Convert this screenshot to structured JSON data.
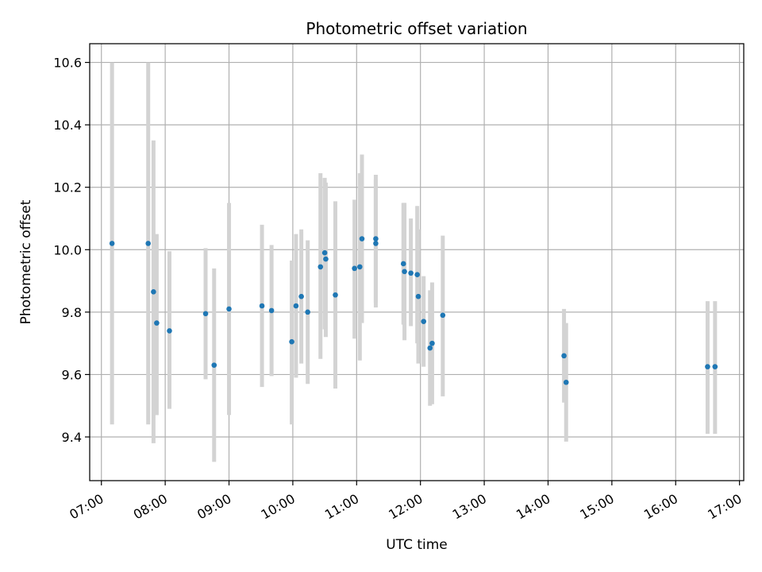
{
  "chart_data": {
    "type": "scatter",
    "title": "Photometric offset variation",
    "xlabel": "UTC time",
    "ylabel": "Photometric offset",
    "xlim": [
      "06:49",
      "17:04"
    ],
    "ylim": [
      9.26,
      10.66
    ],
    "x_ticks": [
      "07:00",
      "08:00",
      "09:00",
      "10:00",
      "11:00",
      "12:00",
      "13:00",
      "14:00",
      "15:00",
      "16:00",
      "17:00"
    ],
    "y_ticks": [
      "9.4",
      "9.6",
      "9.8",
      "10.0",
      "10.2",
      "10.4",
      "10.6"
    ],
    "grid": true,
    "point_color": "#1f77b4",
    "errorbar_color": "#d3d3d3",
    "points": [
      {
        "x": "07:10",
        "y": 10.02,
        "ylow": 9.44,
        "yhigh": 10.6
      },
      {
        "x": "07:44",
        "y": 10.02,
        "ylow": 9.44,
        "yhigh": 10.6
      },
      {
        "x": "07:49",
        "y": 9.865,
        "ylow": 9.38,
        "yhigh": 10.35
      },
      {
        "x": "07:52",
        "y": 9.765,
        "ylow": 9.47,
        "yhigh": 10.05
      },
      {
        "x": "08:04",
        "y": 9.74,
        "ylow": 9.49,
        "yhigh": 9.995
      },
      {
        "x": "08:38",
        "y": 9.795,
        "ylow": 9.585,
        "yhigh": 10.005
      },
      {
        "x": "08:46",
        "y": 9.63,
        "ylow": 9.32,
        "yhigh": 9.94
      },
      {
        "x": "09:00",
        "y": 9.81,
        "ylow": 9.47,
        "yhigh": 10.15
      },
      {
        "x": "09:31",
        "y": 9.82,
        "ylow": 9.56,
        "yhigh": 10.08
      },
      {
        "x": "09:40",
        "y": 9.805,
        "ylow": 9.595,
        "yhigh": 10.015
      },
      {
        "x": "09:59",
        "y": 9.705,
        "ylow": 9.44,
        "yhigh": 9.965
      },
      {
        "x": "10:03",
        "y": 9.82,
        "ylow": 9.59,
        "yhigh": 10.05
      },
      {
        "x": "10:08",
        "y": 9.85,
        "ylow": 9.635,
        "yhigh": 10.065
      },
      {
        "x": "10:14",
        "y": 9.8,
        "ylow": 9.57,
        "yhigh": 10.03
      },
      {
        "x": "10:26",
        "y": 9.945,
        "ylow": 9.65,
        "yhigh": 10.245
      },
      {
        "x": "10:30",
        "y": 9.99,
        "ylow": 9.745,
        "yhigh": 10.23
      },
      {
        "x": "10:31",
        "y": 9.97,
        "ylow": 9.72,
        "yhigh": 10.215
      },
      {
        "x": "10:40",
        "y": 9.855,
        "ylow": 9.555,
        "yhigh": 10.155
      },
      {
        "x": "10:58",
        "y": 9.94,
        "ylow": 9.715,
        "yhigh": 10.16
      },
      {
        "x": "11:03",
        "y": 9.945,
        "ylow": 9.645,
        "yhigh": 10.245
      },
      {
        "x": "11:05",
        "y": 10.035,
        "ylow": 9.765,
        "yhigh": 10.305
      },
      {
        "x": "11:18",
        "y": 10.02,
        "ylow": 9.815,
        "yhigh": 10.225
      },
      {
        "x": "11:18",
        "y": 10.035,
        "ylow": 9.83,
        "yhigh": 10.24
      },
      {
        "x": "11:44",
        "y": 9.955,
        "ylow": 9.76,
        "yhigh": 10.15
      },
      {
        "x": "11:45",
        "y": 9.93,
        "ylow": 9.71,
        "yhigh": 10.15
      },
      {
        "x": "11:51",
        "y": 9.925,
        "ylow": 9.755,
        "yhigh": 10.1
      },
      {
        "x": "11:57",
        "y": 9.92,
        "ylow": 9.7,
        "yhigh": 10.14
      },
      {
        "x": "11:58",
        "y": 9.85,
        "ylow": 9.635,
        "yhigh": 10.065
      },
      {
        "x": "12:03",
        "y": 9.77,
        "ylow": 9.625,
        "yhigh": 9.915
      },
      {
        "x": "12:09",
        "y": 9.685,
        "ylow": 9.5,
        "yhigh": 9.87
      },
      {
        "x": "12:11",
        "y": 9.7,
        "ylow": 9.505,
        "yhigh": 9.895
      },
      {
        "x": "12:21",
        "y": 9.79,
        "ylow": 9.53,
        "yhigh": 10.045
      },
      {
        "x": "14:15",
        "y": 9.66,
        "ylow": 9.51,
        "yhigh": 9.81
      },
      {
        "x": "14:17",
        "y": 9.575,
        "ylow": 9.385,
        "yhigh": 9.765
      },
      {
        "x": "16:30",
        "y": 9.625,
        "ylow": 9.41,
        "yhigh": 9.835
      },
      {
        "x": "16:37",
        "y": 9.625,
        "ylow": 9.41,
        "yhigh": 9.835
      }
    ]
  }
}
